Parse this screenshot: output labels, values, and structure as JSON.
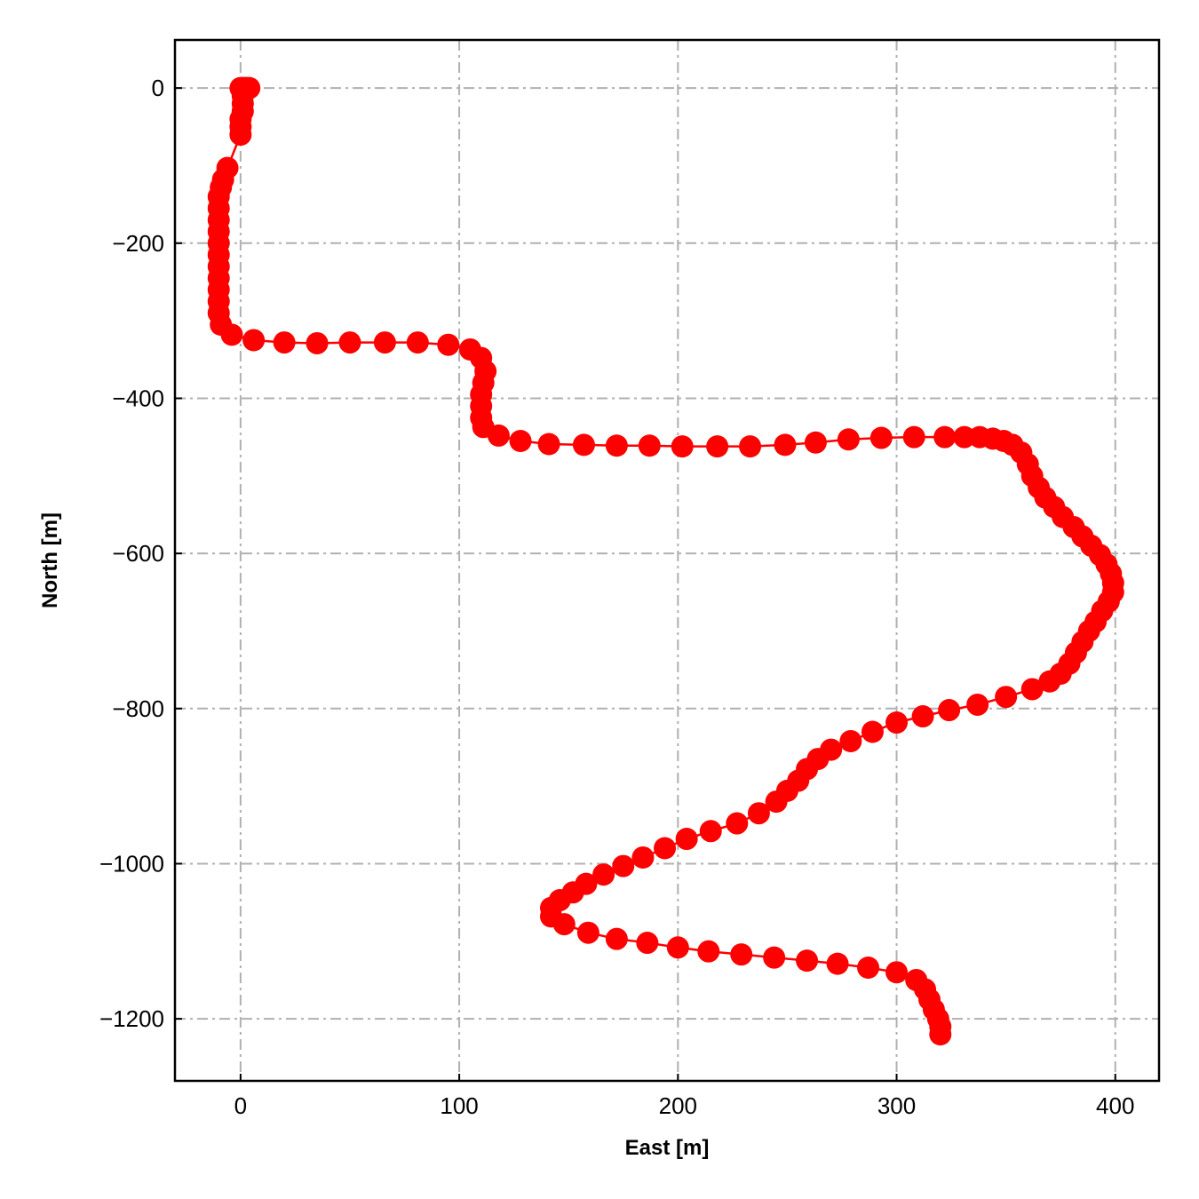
{
  "chart_data": {
    "type": "scatter",
    "xlabel": "East [m]",
    "ylabel": "North [m]",
    "xlim": [
      -30,
      420
    ],
    "ylim": [
      -1280,
      62
    ],
    "xticks": [
      0,
      100,
      200,
      300,
      400
    ],
    "yticks": [
      0,
      -200,
      -400,
      -600,
      -800,
      -1000,
      -1200
    ],
    "xtick_labels": [
      "0",
      "100",
      "200",
      "300",
      "400"
    ],
    "ytick_labels": [
      "0",
      "−200",
      "−400",
      "−600",
      "−800",
      "−1000",
      "−1200"
    ],
    "grid": true,
    "series": [
      {
        "color": "#ff0000",
        "marker": "circle",
        "line": true,
        "points": [
          [
            0,
            0
          ],
          [
            1,
            0
          ],
          [
            2,
            0
          ],
          [
            3,
            0
          ],
          [
            4,
            0
          ],
          [
            1,
            -10
          ],
          [
            1,
            -20
          ],
          [
            1,
            -30
          ],
          [
            0,
            -40
          ],
          [
            0,
            -50
          ],
          [
            0,
            -60
          ],
          [
            -6,
            -103
          ],
          [
            -8,
            -118
          ],
          [
            -9,
            -128
          ],
          [
            -10,
            -140
          ],
          [
            -10,
            -155
          ],
          [
            -10,
            -170
          ],
          [
            -10,
            -185
          ],
          [
            -10,
            -200
          ],
          [
            -10,
            -215
          ],
          [
            -10,
            -230
          ],
          [
            -10,
            -245
          ],
          [
            -10,
            -260
          ],
          [
            -10,
            -275
          ],
          [
            -10,
            -290
          ],
          [
            -9,
            -305
          ],
          [
            -4,
            -318
          ],
          [
            6,
            -325
          ],
          [
            20,
            -328
          ],
          [
            35,
            -329
          ],
          [
            50,
            -328
          ],
          [
            66,
            -328
          ],
          [
            81,
            -328
          ],
          [
            95,
            -331
          ],
          [
            105,
            -337
          ],
          [
            110,
            -348
          ],
          [
            112,
            -365
          ],
          [
            111,
            -380
          ],
          [
            110,
            -395
          ],
          [
            110,
            -410
          ],
          [
            110,
            -425
          ],
          [
            111,
            -437
          ],
          [
            118,
            -448
          ],
          [
            128,
            -455
          ],
          [
            141,
            -459
          ],
          [
            157,
            -460
          ],
          [
            172,
            -461
          ],
          [
            187,
            -461
          ],
          [
            202,
            -462
          ],
          [
            218,
            -462
          ],
          [
            233,
            -462
          ],
          [
            249,
            -460
          ],
          [
            263,
            -457
          ],
          [
            278,
            -453
          ],
          [
            293,
            -451
          ],
          [
            308,
            -450
          ],
          [
            322,
            -450
          ],
          [
            331,
            -450
          ],
          [
            338,
            -450
          ],
          [
            344,
            -452
          ],
          [
            349,
            -455
          ],
          [
            353,
            -460
          ],
          [
            357,
            -470
          ],
          [
            360,
            -485
          ],
          [
            362,
            -500
          ],
          [
            365,
            -515
          ],
          [
            368,
            -528
          ],
          [
            372,
            -540
          ],
          [
            376,
            -553
          ],
          [
            381,
            -566
          ],
          [
            385,
            -578
          ],
          [
            389,
            -590
          ],
          [
            393,
            -602
          ],
          [
            396,
            -614
          ],
          [
            398,
            -626
          ],
          [
            399,
            -638
          ],
          [
            399,
            -650
          ],
          [
            397,
            -662
          ],
          [
            394,
            -674
          ],
          [
            391,
            -688
          ],
          [
            388,
            -700
          ],
          [
            385,
            -714
          ],
          [
            382,
            -728
          ],
          [
            379,
            -742
          ],
          [
            375,
            -755
          ],
          [
            370,
            -765
          ],
          [
            362,
            -775
          ],
          [
            350,
            -785
          ],
          [
            337,
            -795
          ],
          [
            324,
            -802
          ],
          [
            312,
            -810
          ],
          [
            300,
            -818
          ],
          [
            289,
            -830
          ],
          [
            279,
            -842
          ],
          [
            270,
            -853
          ],
          [
            264,
            -865
          ],
          [
            259,
            -878
          ],
          [
            255,
            -893
          ],
          [
            250,
            -906
          ],
          [
            245,
            -920
          ],
          [
            237,
            -935
          ],
          [
            227,
            -948
          ],
          [
            215,
            -958
          ],
          [
            204,
            -968
          ],
          [
            194,
            -980
          ],
          [
            184,
            -992
          ],
          [
            175,
            -1003
          ],
          [
            166,
            -1014
          ],
          [
            158,
            -1026
          ],
          [
            152,
            -1037
          ],
          [
            146,
            -1047
          ],
          [
            142,
            -1057
          ],
          [
            142,
            -1068
          ],
          [
            148,
            -1078
          ],
          [
            159,
            -1089
          ],
          [
            172,
            -1097
          ],
          [
            186,
            -1102
          ],
          [
            200,
            -1108
          ],
          [
            214,
            -1113
          ],
          [
            229,
            -1117
          ],
          [
            244,
            -1121
          ],
          [
            259,
            -1125
          ],
          [
            273,
            -1129
          ],
          [
            287,
            -1134
          ],
          [
            300,
            -1140
          ],
          [
            309,
            -1150
          ],
          [
            313,
            -1162
          ],
          [
            315,
            -1175
          ],
          [
            317,
            -1188
          ],
          [
            319,
            -1200
          ],
          [
            320,
            -1210
          ],
          [
            320,
            -1220
          ]
        ]
      }
    ]
  }
}
